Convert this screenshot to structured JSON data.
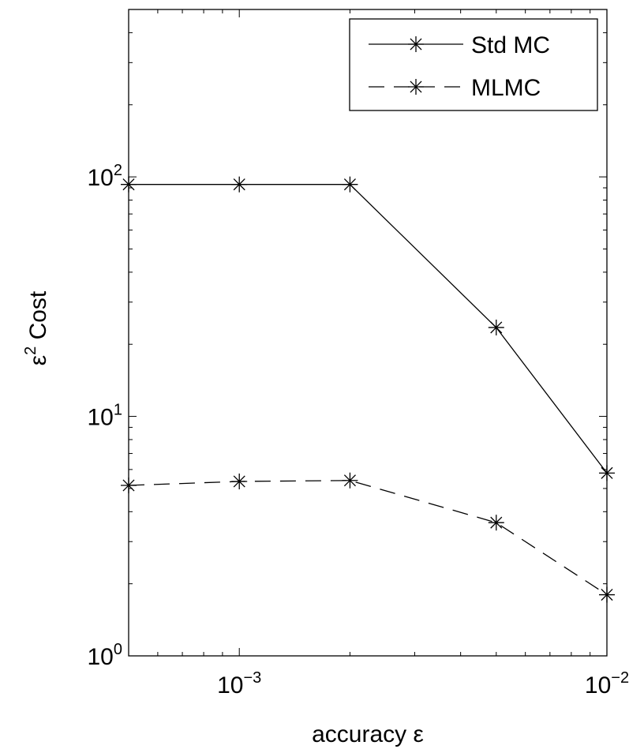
{
  "chart_data": {
    "type": "line",
    "xlabel": "accuracy ε",
    "ylabel_base": "ε",
    "ylabel_sup": "2",
    "ylabel_rest": " Cost",
    "xscale": "log",
    "yscale": "log",
    "xlim": [
      0.0005,
      0.01
    ],
    "ylim": [
      1,
      500
    ],
    "grid": false,
    "legend_position": "top-right",
    "x_ticks": [
      {
        "value": 0.001,
        "base": "10",
        "exp": "−3"
      },
      {
        "value": 0.01,
        "base": "10",
        "exp": "−2"
      }
    ],
    "y_ticks": [
      {
        "value": 1,
        "base": "10",
        "exp": "0"
      },
      {
        "value": 10,
        "base": "10",
        "exp": "1"
      },
      {
        "value": 100,
        "base": "10",
        "exp": "2"
      }
    ],
    "series": [
      {
        "name": "Std MC",
        "style": "solid",
        "marker": "asterisk",
        "x": [
          0.0005,
          0.001,
          0.002,
          0.005,
          0.01
        ],
        "y": [
          93,
          93,
          93,
          23.5,
          5.8
        ]
      },
      {
        "name": "MLMC",
        "style": "dashed",
        "marker": "asterisk",
        "x": [
          0.0005,
          0.001,
          0.002,
          0.005,
          0.01
        ],
        "y": [
          5.15,
          5.35,
          5.4,
          3.6,
          1.8
        ]
      }
    ]
  }
}
